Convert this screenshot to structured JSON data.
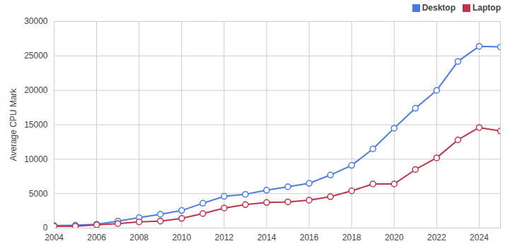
{
  "chart_data": {
    "type": "line",
    "y_label": "Average CPU Mark",
    "x": [
      2004,
      2005,
      2006,
      2007,
      2008,
      2009,
      2010,
      2011,
      2012,
      2013,
      2014,
      2015,
      2016,
      2017,
      2018,
      2019,
      2020,
      2021,
      2022,
      2023,
      2024,
      2025
    ],
    "series": [
      {
        "name": "Desktop",
        "color": "#4a7be5",
        "marker": "circle",
        "line_style": "solid",
        "values": [
          350,
          400,
          550,
          1000,
          1500,
          2000,
          2550,
          3600,
          4600,
          4900,
          5500,
          6000,
          6500,
          7700,
          9100,
          11500,
          14500,
          17400,
          20000,
          24200,
          26400,
          26300
        ]
      },
      {
        "name": "Laptop",
        "color": "#c0334a",
        "marker": "circle",
        "line_style": "solid",
        "values": [
          250,
          250,
          450,
          650,
          900,
          1000,
          1400,
          2100,
          2900,
          3400,
          3700,
          3800,
          4050,
          4550,
          5400,
          6400,
          6400,
          8500,
          10200,
          12800,
          14600,
          14100
        ]
      }
    ],
    "xlim": [
      2004,
      2025
    ],
    "xticks": [
      2004,
      2006,
      2008,
      2010,
      2012,
      2014,
      2016,
      2018,
      2020,
      2022,
      2024
    ],
    "ylim": [
      0,
      30000
    ],
    "yticks": [
      0,
      5000,
      10000,
      15000,
      20000,
      25000,
      30000
    ],
    "grid": true,
    "legend": "top-right"
  }
}
